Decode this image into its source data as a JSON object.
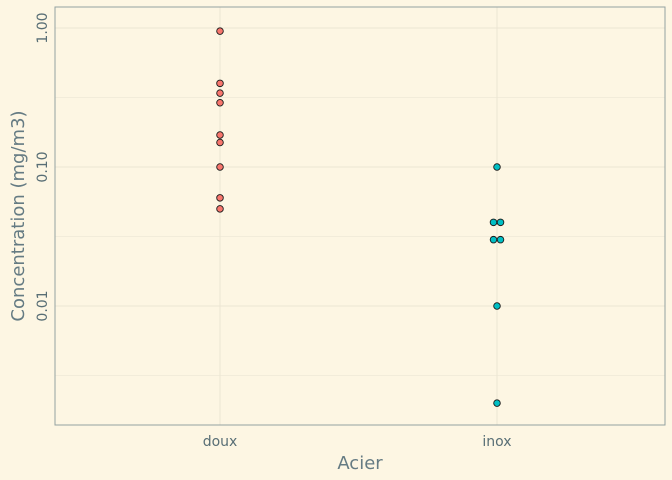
{
  "chart_data": {
    "type": "scatter",
    "title": "",
    "xlabel": "Acier",
    "ylabel": "Concentration (mg/m3)",
    "y_scale": "log10",
    "ylim": [
      0.0009,
      1.2
    ],
    "y_ticks": [
      {
        "value": 0.01,
        "label": "0.01"
      },
      {
        "value": 0.1,
        "label": "0.10"
      },
      {
        "value": 1.0,
        "label": "1.00"
      }
    ],
    "y_minor_ticks": [
      0.00316,
      0.0316,
      0.316
    ],
    "categories": [
      "doux",
      "inox"
    ],
    "grid": true,
    "legend": "none",
    "series": [
      {
        "category": "doux",
        "color": "#f8766d",
        "points": [
          {
            "y": 0.95,
            "jitter": 0
          },
          {
            "y": 0.4,
            "jitter": 0
          },
          {
            "y": 0.34,
            "jitter": 0
          },
          {
            "y": 0.29,
            "jitter": 0
          },
          {
            "y": 0.17,
            "jitter": 0
          },
          {
            "y": 0.15,
            "jitter": 0
          },
          {
            "y": 0.1,
            "jitter": 0
          },
          {
            "y": 0.06,
            "jitter": 0
          },
          {
            "y": 0.05,
            "jitter": 0
          }
        ]
      },
      {
        "category": "inox",
        "color": "#00bfc4",
        "points": [
          {
            "y": 0.1,
            "jitter": 0
          },
          {
            "y": 0.04,
            "jitter": -1
          },
          {
            "y": 0.04,
            "jitter": 1
          },
          {
            "y": 0.03,
            "jitter": -1
          },
          {
            "y": 0.03,
            "jitter": 1
          },
          {
            "y": 0.01,
            "jitter": 0
          },
          {
            "y": 0.002,
            "jitter": 0
          }
        ]
      }
    ]
  }
}
